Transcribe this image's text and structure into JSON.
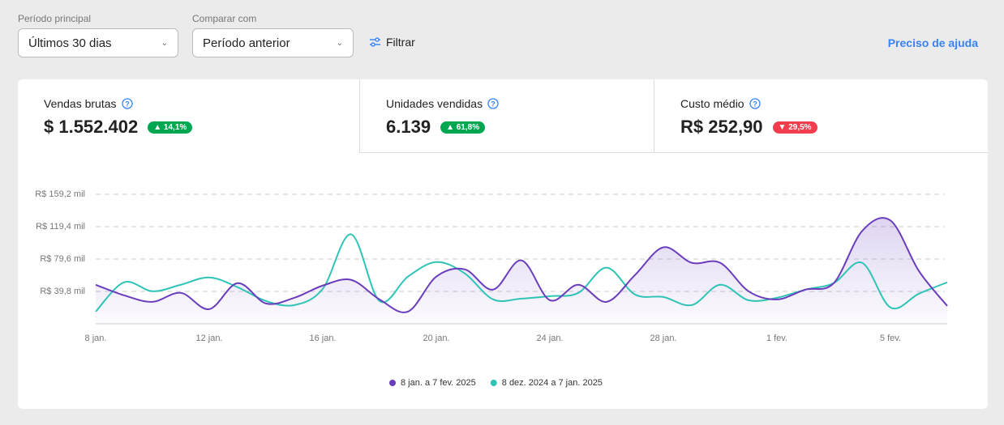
{
  "filters": {
    "period_label": "Período principal",
    "period_value": "Últimos 30 dias",
    "compare_label": "Comparar com",
    "compare_value": "Período anterior",
    "filter_button": "Filtrar"
  },
  "help_link": "Preciso de ajuda",
  "metrics": [
    {
      "label": "Vendas brutas",
      "value": "$ 1.552.402",
      "change": "14,1%",
      "trend": "up"
    },
    {
      "label": "Unidades vendidas",
      "value": "6.139",
      "change": "61,8%",
      "trend": "up"
    },
    {
      "label": "Custo médio",
      "value": "R$ 252,90",
      "change": "29,5%",
      "trend": "down"
    }
  ],
  "chart_data": {
    "type": "line",
    "categories": [
      "8 jan.",
      null,
      null,
      null,
      "12 jan.",
      null,
      null,
      null,
      "16 jan.",
      null,
      null,
      null,
      "20 jan.",
      null,
      null,
      null,
      "24 jan.",
      null,
      null,
      null,
      "28 jan.",
      null,
      null,
      null,
      "1 fev.",
      null,
      null,
      null,
      "5 fev.",
      null,
      null
    ],
    "series": [
      {
        "name": "8 jan. a 7 fev. 2025",
        "color": "#6a3dbd",
        "values": [
          48,
          35,
          27,
          38,
          18,
          50,
          25,
          32,
          47,
          54,
          30,
          15,
          58,
          67,
          42,
          78,
          29,
          48,
          27,
          60,
          94,
          75,
          75,
          40,
          30,
          42,
          50,
          114,
          127,
          65,
          22
        ]
      },
      {
        "name": "8 dez. 2024 a 7 jan. 2025",
        "color": "#2ec4b6",
        "values": [
          15,
          51,
          40,
          48,
          57,
          45,
          28,
          23,
          43,
          110,
          28,
          58,
          76,
          62,
          30,
          31,
          34,
          38,
          69,
          36,
          33,
          23,
          48,
          29,
          32,
          42,
          50,
          75,
          20,
          37,
          51
        ]
      }
    ],
    "ylim": [
      0,
      159.2
    ],
    "yticks": [
      {
        "value": 39.8,
        "label": "R$ 39,8 mil"
      },
      {
        "value": 79.6,
        "label": "R$ 79,6 mil"
      },
      {
        "value": 119.4,
        "label": "R$ 119,4 mil"
      },
      {
        "value": 159.2,
        "label": "R$ 159,2 mil"
      }
    ],
    "grid": true
  }
}
